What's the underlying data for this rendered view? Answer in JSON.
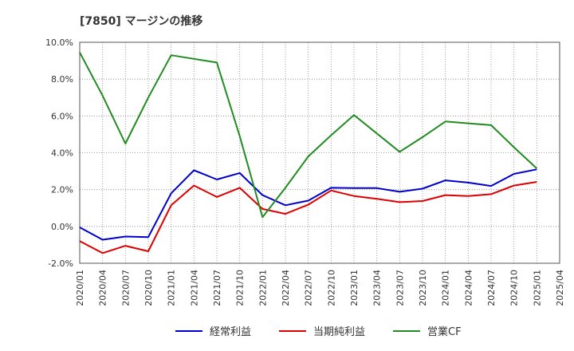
{
  "chart_data": {
    "type": "line",
    "title": "[7850]  マージンの推移",
    "y_ticks": [
      "10.0%",
      "8.0%",
      "6.0%",
      "4.0%",
      "2.0%",
      "0.0%",
      "-2.0%"
    ],
    "ylim": [
      -2,
      10
    ],
    "categories": [
      "2020/01",
      "2020/04",
      "2020/07",
      "2020/10",
      "2021/01",
      "2021/04",
      "2021/07",
      "2021/10",
      "2022/01",
      "2022/04",
      "2022/07",
      "2022/10",
      "2023/01",
      "2023/04",
      "2023/07",
      "2023/10",
      "2024/01",
      "2024/04",
      "2024/07",
      "2024/10",
      "2025/01",
      "2025/04"
    ],
    "grid": "dotted",
    "legend_position": "bottom",
    "series": [
      {
        "name": "経常利益",
        "color": "#0000cc",
        "values": [
          -0.05,
          -0.72,
          -0.55,
          -0.58,
          1.8,
          3.05,
          2.55,
          2.9,
          1.7,
          1.15,
          1.4,
          2.1,
          2.08,
          2.08,
          1.88,
          2.05,
          2.5,
          2.38,
          2.2,
          2.85,
          3.1,
          null
        ]
      },
      {
        "name": "当期純利益",
        "color": "#dd0000",
        "values": [
          -0.8,
          -1.45,
          -1.05,
          -1.35,
          1.15,
          2.22,
          1.6,
          2.1,
          0.95,
          0.68,
          1.18,
          1.95,
          1.65,
          1.5,
          1.32,
          1.38,
          1.7,
          1.65,
          1.75,
          2.22,
          2.42,
          null
        ]
      },
      {
        "name": "営業CF",
        "color": "#228b22",
        "values": [
          9.45,
          7.1,
          4.5,
          7.0,
          9.3,
          9.1,
          8.9,
          4.9,
          0.5,
          2.1,
          3.8,
          4.95,
          6.05,
          5.05,
          4.05,
          4.85,
          5.7,
          5.6,
          5.5,
          4.3,
          3.15,
          null
        ]
      }
    ]
  }
}
